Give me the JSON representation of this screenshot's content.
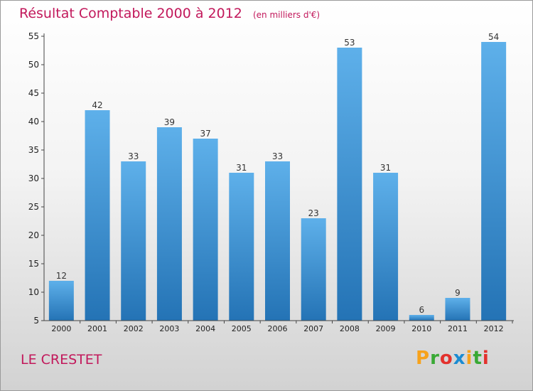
{
  "title": "Résultat Comptable 2000 à 2012",
  "subtitle": "(en milliers d'€)",
  "commune": "LE CRESTET",
  "logo": {
    "letters": [
      "P",
      "r",
      "o",
      "x",
      "i",
      "t",
      "i"
    ],
    "colors": [
      "#f7a21b",
      "#39a935",
      "#e3312d",
      "#1b8bd2",
      "#f7a21b",
      "#39a935",
      "#e3312d"
    ]
  },
  "colors": {
    "title": "#c2185b",
    "bar_top": "#5eb0ea",
    "bar_bottom": "#2473b5",
    "axis": "#444444"
  },
  "chart_data": {
    "type": "bar",
    "title": "Résultat Comptable 2000 à 2012",
    "subtitle": "(en milliers d'€)",
    "categories": [
      "2000",
      "2001",
      "2002",
      "2003",
      "2004",
      "2005",
      "2006",
      "2007",
      "2008",
      "2009",
      "2010",
      "2011",
      "2012"
    ],
    "values": [
      12,
      42,
      33,
      39,
      37,
      31,
      33,
      23,
      53,
      31,
      6,
      9,
      54
    ],
    "ylim": [
      5,
      55
    ],
    "yticks": [
      5,
      10,
      15,
      20,
      25,
      30,
      35,
      40,
      45,
      50,
      55
    ],
    "grid": false,
    "xlabel": "",
    "ylabel": ""
  }
}
